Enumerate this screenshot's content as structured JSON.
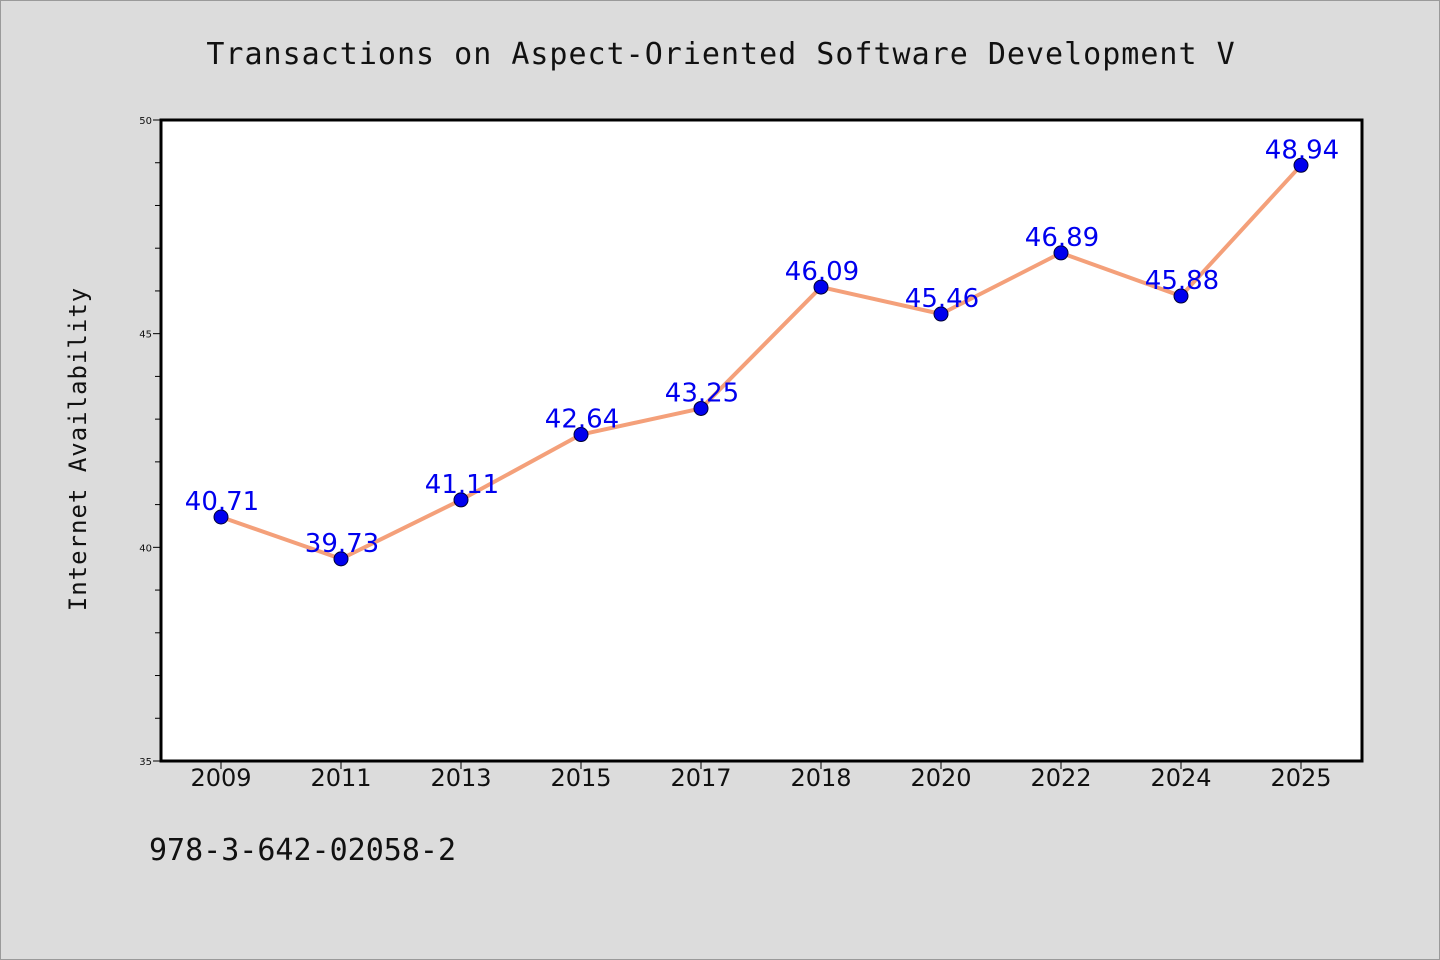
{
  "chart_data": {
    "type": "line",
    "title": "Transactions on Aspect-Oriented Software Development V",
    "xlabel": "",
    "ylabel": "Internet Availability",
    "categories": [
      "2009",
      "2011",
      "2013",
      "2015",
      "2017",
      "2018",
      "2020",
      "2022",
      "2024",
      "2025"
    ],
    "values": [
      40.71,
      39.73,
      41.11,
      42.64,
      43.25,
      46.09,
      45.46,
      46.89,
      45.88,
      48.94
    ],
    "data_labels": [
      "40.71",
      "39.73",
      "41.11",
      "42.64",
      "43.25",
      "46.09",
      "45.46",
      "46.89",
      "45.88",
      "48.94"
    ],
    "ylim": [
      35,
      50
    ],
    "yticks": [
      35,
      40,
      45,
      50
    ],
    "ytick_labels": [
      "35",
      "40",
      "45",
      "50"
    ],
    "yminor_step": 1,
    "grid": false,
    "legend": false
  },
  "colors": {
    "line": "#f4a07a",
    "marker": "#0000ee",
    "data_label": "#0000ee",
    "plot_background": "#ffffff",
    "page_background": "#dcdcdc"
  },
  "footer": {
    "text": "978-3-642-02058-2"
  }
}
